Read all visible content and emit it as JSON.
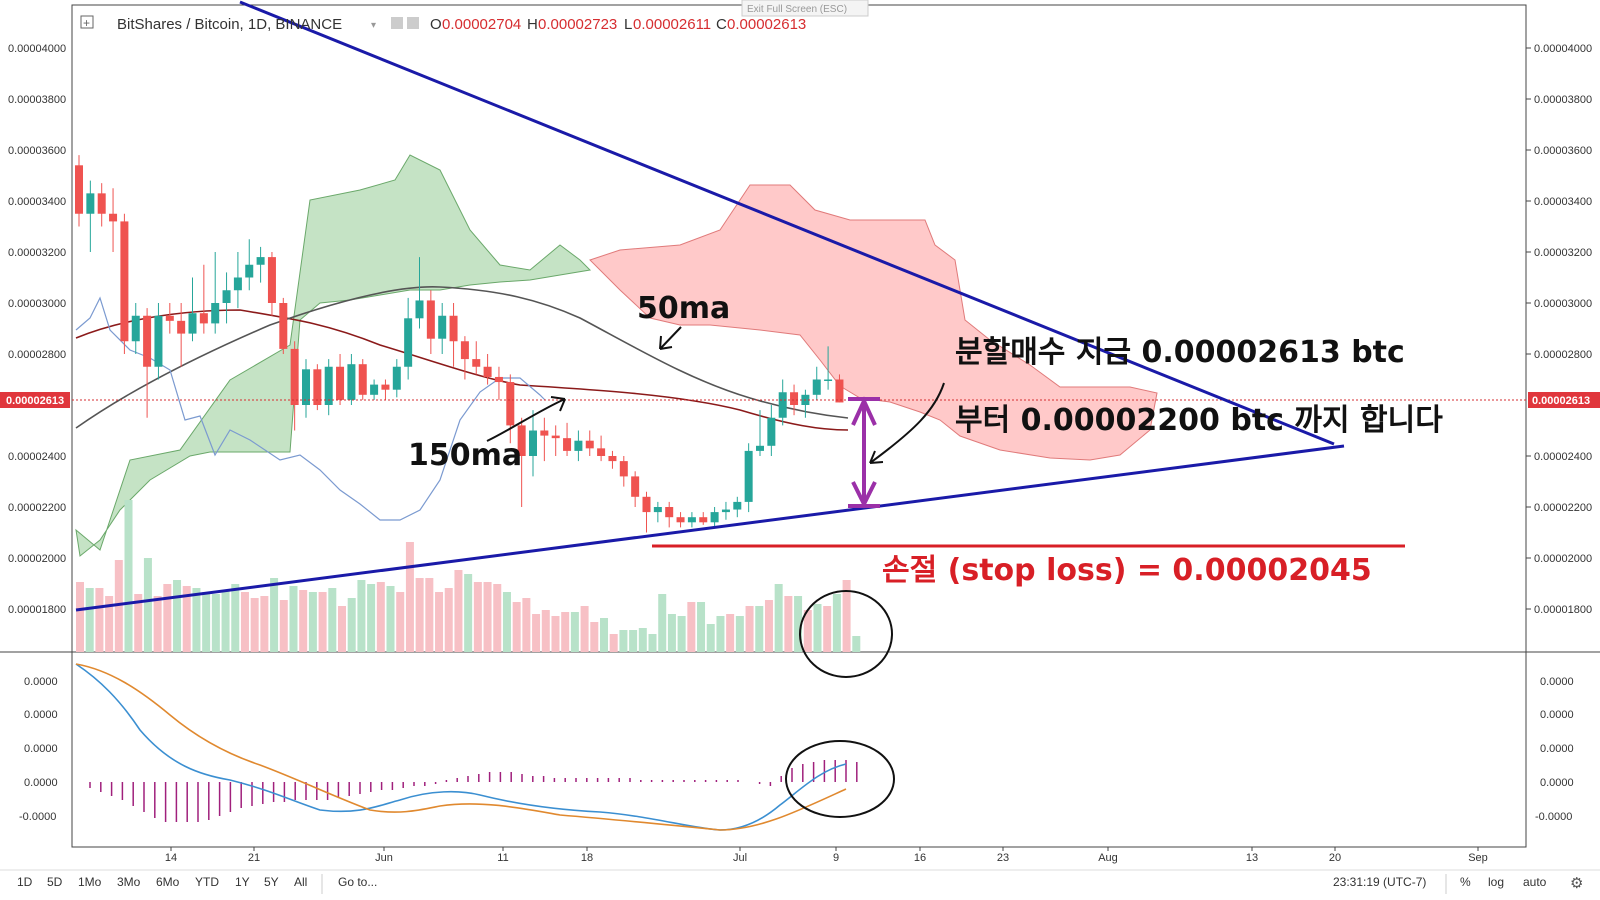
{
  "header": {
    "symbol": "BitShares / Bitcoin, 1D, BINANCE",
    "open_label": "O",
    "open": "0.00002704",
    "high_label": "H",
    "high": "0.00002723",
    "low_label": "L",
    "low": "0.00002611",
    "close_label": "C",
    "close": "0.00002613",
    "exit_fullscreen": "Exit Full Screen (ESC)"
  },
  "current_price_label": "0.00002613",
  "annotations": {
    "ma50": "50ma",
    "ma150": "150ma",
    "buy_line1": "분할매수 지금 0.00002613 btc",
    "buy_line2": "부터 0.00002200 btc 까지 합니다",
    "stop_loss": "손절 (stop loss) = 0.00002045"
  },
  "bottom_bar": {
    "ranges": [
      "1D",
      "5D",
      "1Mo",
      "3Mo",
      "6Mo",
      "YTD",
      "1Y",
      "5Y",
      "All"
    ],
    "goto": "Go to...",
    "clock": "23:31:19 (UTC-7)",
    "percent": "%",
    "log": "log",
    "auto": "auto"
  },
  "colors": {
    "up": "#26a69a",
    "down": "#ef5350",
    "trendline": "#1a1aa8",
    "stop": "#d81f26",
    "arrow": "#9b30a8",
    "kumo_bull": "#8bc88b",
    "kumo_bear": "#ff9c9c"
  },
  "chart_data": {
    "type": "candlestick",
    "x_ticks": [
      "14",
      "21",
      "Jun",
      "11",
      "18",
      "Jul",
      "9",
      "16",
      "23",
      "Aug",
      "13",
      "20",
      "Sep"
    ],
    "y_ticks": [
      "0.00004000",
      "0.00003800",
      "0.00003600",
      "0.00003400",
      "0.00003200",
      "0.00003000",
      "0.00002800",
      "0.00002400",
      "0.00002200",
      "0.00002000",
      "0.00001800"
    ],
    "ylim": [
      1.65e-05,
      4.14e-05
    ],
    "osc_ticks": [
      "0.0000",
      "0.0000",
      "0.0000",
      "0.0000",
      "-0.0000"
    ],
    "candles": [
      {
        "o": 3.54e-05,
        "h": 3.58e-05,
        "l": 3.3e-05,
        "c": 3.35e-05
      },
      {
        "o": 3.35e-05,
        "h": 3.48e-05,
        "l": 3.2e-05,
        "c": 3.43e-05
      },
      {
        "o": 3.43e-05,
        "h": 3.47e-05,
        "l": 3.3e-05,
        "c": 3.35e-05
      },
      {
        "o": 3.35e-05,
        "h": 3.45e-05,
        "l": 3.2e-05,
        "c": 3.32e-05
      },
      {
        "o": 3.32e-05,
        "h": 3.35e-05,
        "l": 2.8e-05,
        "c": 2.85e-05
      },
      {
        "o": 2.85e-05,
        "h": 3e-05,
        "l": 2.8e-05,
        "c": 2.95e-05
      },
      {
        "o": 2.95e-05,
        "h": 2.98e-05,
        "l": 2.55e-05,
        "c": 2.75e-05
      },
      {
        "o": 2.75e-05,
        "h": 3e-05,
        "l": 2.7e-05,
        "c": 2.95e-05
      },
      {
        "o": 2.95e-05,
        "h": 3e-05,
        "l": 2.88e-05,
        "c": 2.93e-05
      },
      {
        "o": 2.93e-05,
        "h": 3e-05,
        "l": 2.75e-05,
        "c": 2.88e-05
      },
      {
        "o": 2.88e-05,
        "h": 3.1e-05,
        "l": 2.85e-05,
        "c": 2.96e-05
      },
      {
        "o": 2.96e-05,
        "h": 3.15e-05,
        "l": 2.88e-05,
        "c": 2.92e-05
      },
      {
        "o": 2.92e-05,
        "h": 3.2e-05,
        "l": 2.88e-05,
        "c": 3e-05
      },
      {
        "o": 3e-05,
        "h": 3.12e-05,
        "l": 2.92e-05,
        "c": 3.05e-05
      },
      {
        "o": 3.05e-05,
        "h": 3.2e-05,
        "l": 2.98e-05,
        "c": 3.1e-05
      },
      {
        "o": 3.1e-05,
        "h": 3.25e-05,
        "l": 3.05e-05,
        "c": 3.15e-05
      },
      {
        "o": 3.15e-05,
        "h": 3.22e-05,
        "l": 3.08e-05,
        "c": 3.18e-05
      },
      {
        "o": 3.18e-05,
        "h": 3.2e-05,
        "l": 2.95e-05,
        "c": 3e-05
      },
      {
        "o": 3e-05,
        "h": 3.02e-05,
        "l": 2.8e-05,
        "c": 2.82e-05
      },
      {
        "o": 2.82e-05,
        "h": 2.85e-05,
        "l": 2.5e-05,
        "c": 2.6e-05
      },
      {
        "o": 2.6e-05,
        "h": 2.78e-05,
        "l": 2.55e-05,
        "c": 2.74e-05
      },
      {
        "o": 2.74e-05,
        "h": 2.76e-05,
        "l": 2.58e-05,
        "c": 2.6e-05
      },
      {
        "o": 2.6e-05,
        "h": 2.78e-05,
        "l": 2.56e-05,
        "c": 2.75e-05
      },
      {
        "o": 2.75e-05,
        "h": 2.8e-05,
        "l": 2.6e-05,
        "c": 2.62e-05
      },
      {
        "o": 2.62e-05,
        "h": 2.8e-05,
        "l": 2.6e-05,
        "c": 2.76e-05
      },
      {
        "o": 2.76e-05,
        "h": 2.78e-05,
        "l": 2.62e-05,
        "c": 2.64e-05
      },
      {
        "o": 2.64e-05,
        "h": 2.7e-05,
        "l": 2.62e-05,
        "c": 2.68e-05
      },
      {
        "o": 2.68e-05,
        "h": 2.7e-05,
        "l": 2.62e-05,
        "c": 2.66e-05
      },
      {
        "o": 2.66e-05,
        "h": 2.78e-05,
        "l": 2.63e-05,
        "c": 2.75e-05
      },
      {
        "o": 2.75e-05,
        "h": 3.02e-05,
        "l": 2.7e-05,
        "c": 2.94e-05
      },
      {
        "o": 2.94e-05,
        "h": 3.18e-05,
        "l": 2.9e-05,
        "c": 3.01e-05
      },
      {
        "o": 3.01e-05,
        "h": 3.05e-05,
        "l": 2.8e-05,
        "c": 2.86e-05
      },
      {
        "o": 2.86e-05,
        "h": 3e-05,
        "l": 2.8e-05,
        "c": 2.95e-05
      },
      {
        "o": 2.95e-05,
        "h": 3e-05,
        "l": 2.75e-05,
        "c": 2.85e-05
      },
      {
        "o": 2.85e-05,
        "h": 2.87e-05,
        "l": 2.7e-05,
        "c": 2.78e-05
      },
      {
        "o": 2.78e-05,
        "h": 2.85e-05,
        "l": 2.72e-05,
        "c": 2.75e-05
      },
      {
        "o": 2.75e-05,
        "h": 2.8e-05,
        "l": 2.68e-05,
        "c": 2.71e-05
      },
      {
        "o": 2.71e-05,
        "h": 2.75e-05,
        "l": 2.62e-05,
        "c": 2.69e-05
      },
      {
        "o": 2.69e-05,
        "h": 2.72e-05,
        "l": 2.45e-05,
        "c": 2.52e-05
      },
      {
        "o": 2.52e-05,
        "h": 2.55e-05,
        "l": 2.2e-05,
        "c": 2.4e-05
      },
      {
        "o": 2.4e-05,
        "h": 2.58e-05,
        "l": 2.32e-05,
        "c": 2.5e-05
      },
      {
        "o": 2.5e-05,
        "h": 2.55e-05,
        "l": 2.38e-05,
        "c": 2.48e-05
      },
      {
        "o": 2.48e-05,
        "h": 2.52e-05,
        "l": 2.4e-05,
        "c": 2.47e-05
      },
      {
        "o": 2.47e-05,
        "h": 2.53e-05,
        "l": 2.4e-05,
        "c": 2.42e-05
      },
      {
        "o": 2.42e-05,
        "h": 2.5e-05,
        "l": 2.38e-05,
        "c": 2.46e-05
      },
      {
        "o": 2.46e-05,
        "h": 2.5e-05,
        "l": 2.4e-05,
        "c": 2.43e-05
      },
      {
        "o": 2.43e-05,
        "h": 2.48e-05,
        "l": 2.38e-05,
        "c": 2.4e-05
      },
      {
        "o": 2.4e-05,
        "h": 2.42e-05,
        "l": 2.35e-05,
        "c": 2.38e-05
      },
      {
        "o": 2.38e-05,
        "h": 2.4e-05,
        "l": 2.28e-05,
        "c": 2.32e-05
      },
      {
        "o": 2.32e-05,
        "h": 2.34e-05,
        "l": 2.2e-05,
        "c": 2.24e-05
      },
      {
        "o": 2.24e-05,
        "h": 2.26e-05,
        "l": 2.1e-05,
        "c": 2.18e-05
      },
      {
        "o": 2.18e-05,
        "h": 2.22e-05,
        "l": 2.14e-05,
        "c": 2.2e-05
      },
      {
        "o": 2.2e-05,
        "h": 2.22e-05,
        "l": 2.12e-05,
        "c": 2.16e-05
      },
      {
        "o": 2.16e-05,
        "h": 2.18e-05,
        "l": 2.12e-05,
        "c": 2.14e-05
      },
      {
        "o": 2.14e-05,
        "h": 2.18e-05,
        "l": 2.12e-05,
        "c": 2.16e-05
      },
      {
        "o": 2.16e-05,
        "h": 2.18e-05,
        "l": 2.13e-05,
        "c": 2.14e-05
      },
      {
        "o": 2.14e-05,
        "h": 2.2e-05,
        "l": 2.12e-05,
        "c": 2.18e-05
      },
      {
        "o": 2.18e-05,
        "h": 2.22e-05,
        "l": 2.15e-05,
        "c": 2.19e-05
      },
      {
        "o": 2.19e-05,
        "h": 2.24e-05,
        "l": 2.16e-05,
        "c": 2.22e-05
      },
      {
        "o": 2.22e-05,
        "h": 2.45e-05,
        "l": 2.18e-05,
        "c": 2.42e-05
      },
      {
        "o": 2.42e-05,
        "h": 2.58e-05,
        "l": 2.4e-05,
        "c": 2.44e-05
      },
      {
        "o": 2.44e-05,
        "h": 2.6e-05,
        "l": 2.4e-05,
        "c": 2.55e-05
      },
      {
        "o": 2.55e-05,
        "h": 2.7e-05,
        "l": 2.52e-05,
        "c": 2.65e-05
      },
      {
        "o": 2.65e-05,
        "h": 2.68e-05,
        "l": 2.56e-05,
        "c": 2.6e-05
      },
      {
        "o": 2.6e-05,
        "h": 2.66e-05,
        "l": 2.55e-05,
        "c": 2.64e-05
      },
      {
        "o": 2.64e-05,
        "h": 2.75e-05,
        "l": 2.62e-05,
        "c": 2.7e-05
      },
      {
        "o": 2.7e-05,
        "h": 2.83e-05,
        "l": 2.66e-05,
        "c": 2.7e-05
      },
      {
        "o": 2.7e-05,
        "h": 2.72e-05,
        "l": 2.61e-05,
        "c": 2.61e-05
      }
    ]
  }
}
